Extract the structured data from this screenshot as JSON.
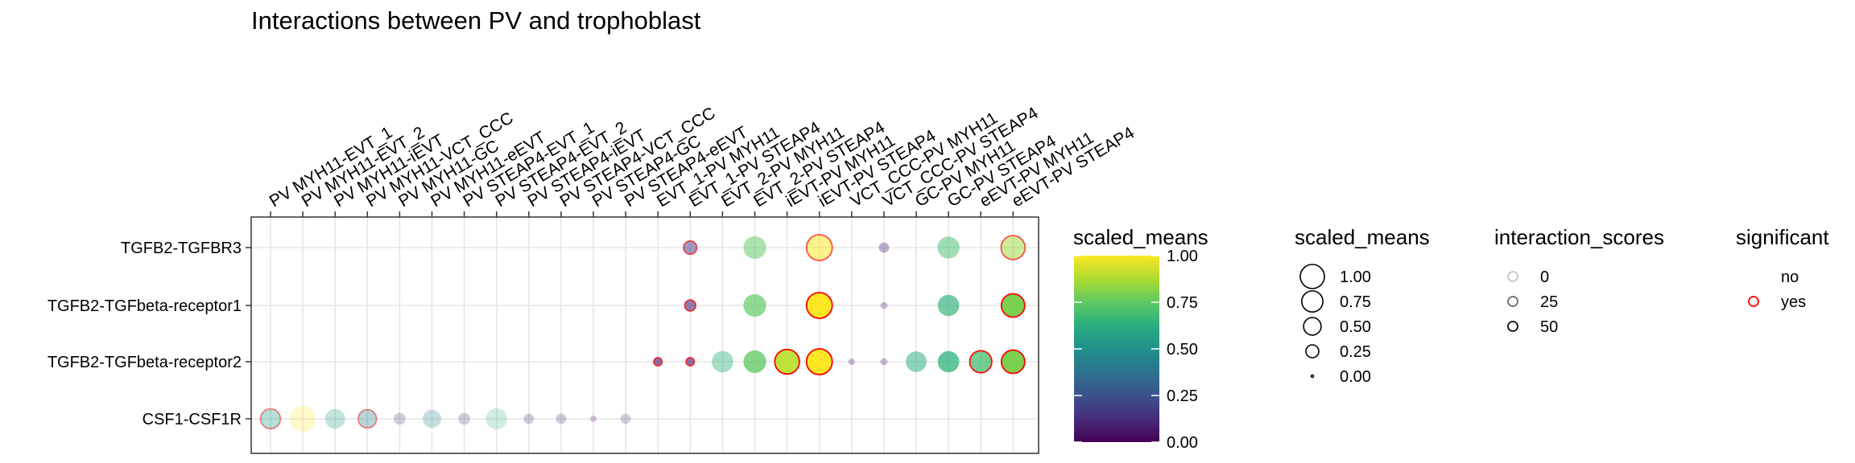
{
  "chart_data": {
    "type": "scatter",
    "title": "Interactions between PV and trophoblast",
    "xlabel": "",
    "ylabel": "",
    "x_categories": [
      "PV MYH11-EVT_1",
      "PV MYH11-EVT_2",
      "PV MYH11-iEVT",
      "PV MYH11-VCT_CCC",
      "PV MYH11-GC",
      "PV MYH11-eEVT",
      "PV STEAP4-EVT_1",
      "PV STEAP4-EVT_2",
      "PV STEAP4-iEVT",
      "PV STEAP4-VCT_CCC",
      "PV STEAP4-GC",
      "PV STEAP4-eEVT",
      "EVT_1-PV MYH11",
      "EVT_1-PV STEAP4",
      "EVT_2-PV MYH11",
      "EVT_2-PV STEAP4",
      "iEVT-PV MYH11",
      "iEVT-PV STEAP4",
      "VCT_CCC-PV MYH11",
      "VCT_CCC-PV STEAP4",
      "GC-PV MYH11",
      "GC-PV STEAP4",
      "eEVT-PV MYH11",
      "eEVT-PV STEAP4"
    ],
    "y_categories": [
      "TGFB2-TGFBR3",
      "TGFB2-TGFbeta-receptor1",
      "TGFB2-TGFbeta-receptor2",
      "CSF1-CSF1R"
    ],
    "grid": true,
    "points": [
      {
        "pair": "PV MYH11-EVT_1",
        "interaction": "CSF1-CSF1R",
        "scaled_means": 0.55,
        "interaction_score": 8,
        "significant": "yes"
      },
      {
        "pair": "PV MYH11-EVT_2",
        "interaction": "CSF1-CSF1R",
        "scaled_means": 1.0,
        "interaction_score": 3,
        "significant": "no"
      },
      {
        "pair": "PV MYH11-iEVT",
        "interaction": "CSF1-CSF1R",
        "scaled_means": 0.55,
        "interaction_score": 5,
        "significant": "no"
      },
      {
        "pair": "PV MYH11-VCT_CCC",
        "interaction": "CSF1-CSF1R",
        "scaled_means": 0.45,
        "interaction_score": 8,
        "significant": "yes"
      },
      {
        "pair": "PV MYH11-GC",
        "interaction": "CSF1-CSF1R",
        "scaled_means": 0.15,
        "interaction_score": 3,
        "significant": "no"
      },
      {
        "pair": "PV MYH11-eEVT",
        "interaction": "CSF1-CSF1R",
        "scaled_means": 0.45,
        "interaction_score": 4,
        "significant": "no"
      },
      {
        "pair": "PV STEAP4-EVT_1",
        "interaction": "CSF1-CSF1R",
        "scaled_means": 0.15,
        "interaction_score": 3,
        "significant": "no"
      },
      {
        "pair": "PV STEAP4-EVT_2",
        "interaction": "CSF1-CSF1R",
        "scaled_means": 0.65,
        "interaction_score": 2,
        "significant": "no"
      },
      {
        "pair": "PV STEAP4-iEVT",
        "interaction": "CSF1-CSF1R",
        "scaled_means": 0.1,
        "interaction_score": 3,
        "significant": "no"
      },
      {
        "pair": "PV STEAP4-VCT_CCC",
        "interaction": "CSF1-CSF1R",
        "scaled_means": 0.1,
        "interaction_score": 3,
        "significant": "no"
      },
      {
        "pair": "PV STEAP4-GC",
        "interaction": "CSF1-CSF1R",
        "scaled_means": 0.02,
        "interaction_score": 2,
        "significant": "no"
      },
      {
        "pair": "PV STEAP4-eEVT",
        "interaction": "CSF1-CSF1R",
        "scaled_means": 0.1,
        "interaction_score": 2,
        "significant": "no"
      },
      {
        "pair": "EVT_1-PV MYH11",
        "interaction": "TGFB2-TGFbeta-receptor2",
        "scaled_means": 0.05,
        "interaction_score": 25,
        "significant": "yes"
      },
      {
        "pair": "EVT_1-PV STEAP4",
        "interaction": "TGFB2-TGFBR3",
        "scaled_means": 0.2,
        "interaction_score": 20,
        "significant": "yes"
      },
      {
        "pair": "EVT_1-PV STEAP4",
        "interaction": "TGFB2-TGFbeta-receptor1",
        "scaled_means": 0.12,
        "interaction_score": 25,
        "significant": "yes"
      },
      {
        "pair": "EVT_1-PV STEAP4",
        "interaction": "TGFB2-TGFbeta-receptor2",
        "scaled_means": 0.05,
        "interaction_score": 25,
        "significant": "yes"
      },
      {
        "pair": "EVT_2-PV MYH11",
        "interaction": "TGFB2-TGFbeta-receptor2",
        "scaled_means": 0.65,
        "interaction_score": 15,
        "significant": "no"
      },
      {
        "pair": "EVT_2-PV STEAP4",
        "interaction": "TGFB2-TGFBR3",
        "scaled_means": 0.75,
        "interaction_score": 20,
        "significant": "no"
      },
      {
        "pair": "EVT_2-PV STEAP4",
        "interaction": "TGFB2-TGFbeta-receptor1",
        "scaled_means": 0.75,
        "interaction_score": 30,
        "significant": "no"
      },
      {
        "pair": "EVT_2-PV STEAP4",
        "interaction": "TGFB2-TGFbeta-receptor2",
        "scaled_means": 0.75,
        "interaction_score": 35,
        "significant": "no"
      },
      {
        "pair": "iEVT-PV MYH11",
        "interaction": "TGFB2-TGFbeta-receptor2",
        "scaled_means": 0.9,
        "interaction_score": 45,
        "significant": "yes"
      },
      {
        "pair": "iEVT-PV STEAP4",
        "interaction": "TGFB2-TGFBR3",
        "scaled_means": 1.0,
        "interaction_score": 20,
        "significant": "yes"
      },
      {
        "pair": "iEVT-PV STEAP4",
        "interaction": "TGFB2-TGFbeta-receptor1",
        "scaled_means": 1.0,
        "interaction_score": 50,
        "significant": "yes"
      },
      {
        "pair": "iEVT-PV STEAP4",
        "interaction": "TGFB2-TGFbeta-receptor2",
        "scaled_means": 1.0,
        "interaction_score": 50,
        "significant": "yes"
      },
      {
        "pair": "VCT_CCC-PV MYH11",
        "interaction": "TGFB2-TGFbeta-receptor2",
        "scaled_means": 0.02,
        "interaction_score": 5,
        "significant": "no"
      },
      {
        "pair": "VCT_CCC-PV STEAP4",
        "interaction": "TGFB2-TGFBR3",
        "scaled_means": 0.1,
        "interaction_score": 10,
        "significant": "no"
      },
      {
        "pair": "VCT_CCC-PV STEAP4",
        "interaction": "TGFB2-TGFbeta-receptor1",
        "scaled_means": 0.03,
        "interaction_score": 5,
        "significant": "no"
      },
      {
        "pair": "VCT_CCC-PV STEAP4",
        "interaction": "TGFB2-TGFbeta-receptor2",
        "scaled_means": 0.03,
        "interaction_score": 5,
        "significant": "no"
      },
      {
        "pair": "GC-PV MYH11",
        "interaction": "TGFB2-TGFbeta-receptor2",
        "scaled_means": 0.6,
        "interaction_score": 20,
        "significant": "no"
      },
      {
        "pair": "GC-PV STEAP4",
        "interaction": "TGFB2-TGFBR3",
        "scaled_means": 0.7,
        "interaction_score": 20,
        "significant": "no"
      },
      {
        "pair": "GC-PV STEAP4",
        "interaction": "TGFB2-TGFbeta-receptor1",
        "scaled_means": 0.65,
        "interaction_score": 30,
        "significant": "no"
      },
      {
        "pair": "GC-PV STEAP4",
        "interaction": "TGFB2-TGFbeta-receptor2",
        "scaled_means": 0.65,
        "interaction_score": 35,
        "significant": "no"
      },
      {
        "pair": "eEVT-PV MYH11",
        "interaction": "TGFB2-TGFbeta-receptor2",
        "scaled_means": 0.7,
        "interaction_score": 35,
        "significant": "yes"
      },
      {
        "pair": "eEVT-PV STEAP4",
        "interaction": "TGFB2-TGFBR3",
        "scaled_means": 0.85,
        "interaction_score": 20,
        "significant": "yes"
      },
      {
        "pair": "eEVT-PV STEAP4",
        "interaction": "TGFB2-TGFbeta-receptor1",
        "scaled_means": 0.8,
        "interaction_score": 50,
        "significant": "yes"
      },
      {
        "pair": "eEVT-PV STEAP4",
        "interaction": "TGFB2-TGFbeta-receptor2",
        "scaled_means": 0.8,
        "interaction_score": 50,
        "significant": "yes"
      }
    ],
    "legends": {
      "color": {
        "title": "scaled_means",
        "colormap": "viridis",
        "ticks": [
          "0.00",
          "0.25",
          "0.50",
          "0.75",
          "1.00"
        ]
      },
      "size": {
        "title": "scaled_means",
        "values": [
          1.0,
          0.75,
          0.5,
          0.25,
          0.0
        ],
        "labels": [
          "1.00",
          "0.75",
          "0.50",
          "0.25",
          "0.00"
        ]
      },
      "alpha": {
        "title": "interaction_scores",
        "values": [
          0,
          25,
          50
        ],
        "labels": [
          "0",
          "25",
          "50"
        ]
      },
      "significance": {
        "title": "significant",
        "labels": [
          "no",
          "yes"
        ],
        "colors": [
          "#ffffff",
          "#ff0000"
        ]
      }
    }
  }
}
